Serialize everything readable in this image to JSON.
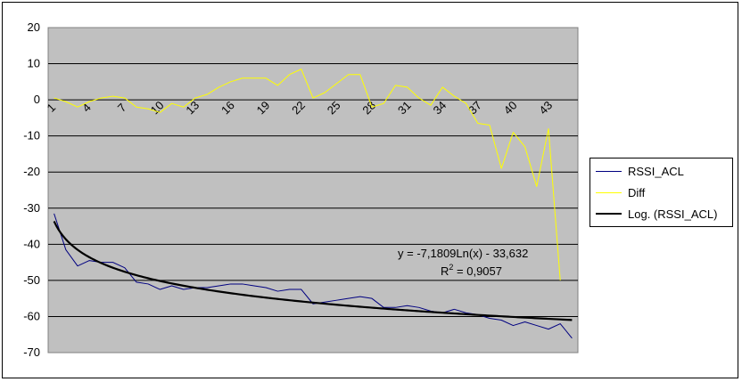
{
  "chart_data": {
    "type": "line",
    "title": "",
    "xlabel": "",
    "ylabel": "",
    "x": [
      1,
      2,
      3,
      4,
      5,
      6,
      7,
      8,
      9,
      10,
      11,
      12,
      13,
      14,
      15,
      16,
      17,
      18,
      19,
      20,
      21,
      22,
      23,
      24,
      25,
      26,
      27,
      28,
      29,
      30,
      31,
      32,
      33,
      34,
      35,
      36,
      37,
      38,
      39,
      40,
      41,
      42,
      43,
      44,
      45
    ],
    "x_tick_labels": [
      "1",
      "4",
      "7",
      "10",
      "13",
      "16",
      "19",
      "22",
      "25",
      "28",
      "31",
      "34",
      "37",
      "40",
      "43"
    ],
    "ylim": [
      -70,
      20
    ],
    "y_ticks": [
      20,
      10,
      0,
      -10,
      -20,
      -30,
      -40,
      -50,
      -60,
      -70
    ],
    "grid": true,
    "legend_position": "right",
    "plot_background": "#C0C0C0",
    "series": [
      {
        "name": "RSSI_ACL",
        "color": "#000080",
        "values": [
          -31.5,
          -41.5,
          -46,
          -44.5,
          -45,
          -45,
          -46.5,
          -50.5,
          -51,
          -52.5,
          -51.5,
          -52.5,
          -52,
          -52,
          -51.5,
          -51,
          -51,
          -51.5,
          -52,
          -53,
          -52.5,
          -52.5,
          -56.5,
          -56,
          -55.5,
          -55,
          -54.5,
          -55,
          -57.5,
          -57.5,
          -57,
          -57.5,
          -58.5,
          -59,
          -58,
          -59,
          -59.5,
          -60.5,
          -61,
          -62.5,
          -61.5,
          -62.5,
          -63.5,
          -62,
          -66
        ]
      },
      {
        "name": "Diff",
        "color": "#FFFF00",
        "values": [
          0.5,
          -0.5,
          -2,
          -0.5,
          0.5,
          1,
          0.5,
          -2,
          -2.5,
          -3.5,
          -1,
          -2,
          0.5,
          1.5,
          3.5,
          5,
          6,
          6,
          6,
          4,
          7,
          8.5,
          0.5,
          2,
          4.5,
          7,
          7,
          -2,
          -1,
          4,
          3.5,
          0.5,
          -1.5,
          3.5,
          1,
          -1,
          -6.5,
          -7,
          -19,
          -9,
          -13,
          -24,
          -8,
          -50,
          null
        ]
      },
      {
        "name": "Log. (RSSI_ACL)",
        "color": "#000000",
        "type": "trendline-log",
        "coef_a": -7.1809,
        "coef_b": -33.632
      }
    ],
    "annotations": {
      "equation": "y = -7,1809Ln(x) - 33,632",
      "r2_label": "R",
      "r2_exp": "2",
      "r2_value": " = 0,9057"
    }
  }
}
